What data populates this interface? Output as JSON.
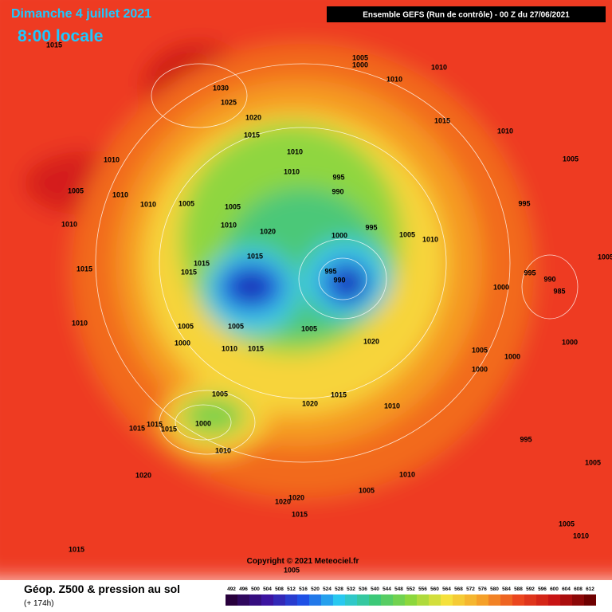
{
  "header": {
    "date": "Dimanche 4 juillet 2021",
    "time": "8:00 locale",
    "run": "Ensemble GEFS  (Run de contrôle)  -  00 Z du 27/06/2021"
  },
  "pressure_labels": [
    "1015",
    "1005",
    "1000",
    "1010",
    "1010",
    "1030",
    "1025",
    "1020",
    "1015",
    "1010",
    "1015",
    "1010",
    "1010",
    "1005",
    "1010",
    "995",
    "990",
    "1005",
    "1010",
    "1010",
    "1005",
    "1005",
    "995",
    "1010",
    "1010",
    "1020",
    "995",
    "1000",
    "1005",
    "1010",
    "1015",
    "1015",
    "1015",
    "1015",
    "995",
    "990",
    "995",
    "990",
    "985",
    "1000",
    "1005",
    "1010",
    "1005",
    "1005",
    "1005",
    "1000",
    "1010",
    "1015",
    "1020",
    "1005",
    "1000",
    "1000",
    "1000",
    "1005",
    "1015",
    "1020",
    "1010",
    "1000",
    "1015",
    "1015",
    "1015",
    "1010",
    "995",
    "1020",
    "1010",
    "1005",
    "1020",
    "1020",
    "1015",
    "1005",
    "1005",
    "1010",
    "1015",
    "1005"
  ],
  "footer": {
    "title": "Géop. Z500 & pression au sol",
    "lead": "(+ 174h)",
    "copyright": "Copyright © 2021 Meteociel.fr"
  },
  "legend": {
    "scale": [
      492,
      496,
      500,
      504,
      508,
      512,
      516,
      520,
      524,
      528,
      532,
      536,
      540,
      544,
      548,
      552,
      556,
      560,
      564,
      568,
      572,
      576,
      580,
      584,
      588,
      592,
      596,
      600,
      604,
      608,
      612
    ]
  }
}
